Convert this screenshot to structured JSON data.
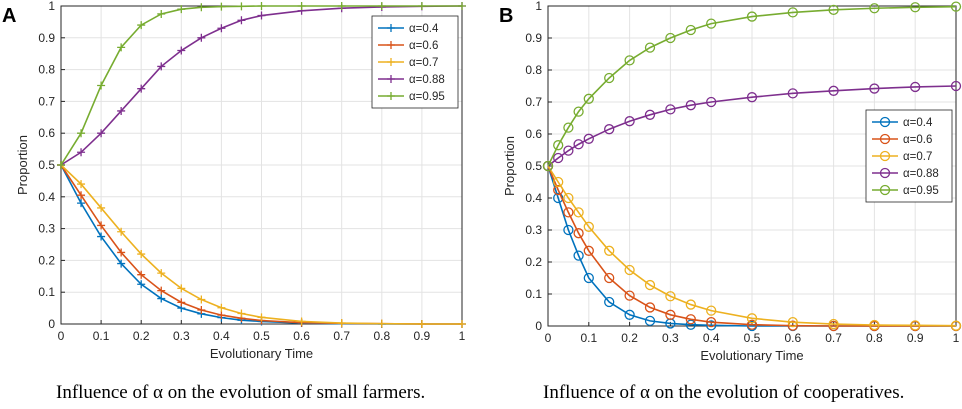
{
  "chart_data": [
    {
      "panel_label": "A",
      "type": "line",
      "xlabel": "Evolutionary Time",
      "ylabel": "Proportion",
      "xlim": [
        0,
        1
      ],
      "ylim": [
        0,
        1
      ],
      "xticks": [
        "0",
        "0.1",
        "0.2",
        "0.3",
        "0.4",
        "0.5",
        "0.6",
        "0.7",
        "0.8",
        "0.9",
        "1"
      ],
      "yticks": [
        "0",
        "0.1",
        "0.2",
        "0.3",
        "0.4",
        "0.5",
        "0.6",
        "0.7",
        "0.8",
        "0.9",
        "1"
      ],
      "grid": true,
      "legend_position": "top-right",
      "marker": "plus",
      "x": [
        0,
        0.05,
        0.1,
        0.15,
        0.2,
        0.25,
        0.3,
        0.35,
        0.4,
        0.45,
        0.5,
        0.6,
        0.7,
        0.8,
        0.9,
        1.0
      ],
      "series": [
        {
          "name": "α=0.4",
          "color": "#0072BD",
          "values": [
            0.5,
            0.38,
            0.275,
            0.19,
            0.125,
            0.08,
            0.05,
            0.032,
            0.02,
            0.012,
            0.008,
            0.003,
            0.001,
            0.0,
            0.0,
            0.0
          ]
        },
        {
          "name": "α=0.6",
          "color": "#D95319",
          "values": [
            0.5,
            0.405,
            0.31,
            0.225,
            0.155,
            0.105,
            0.068,
            0.044,
            0.028,
            0.018,
            0.011,
            0.004,
            0.002,
            0.001,
            0.0,
            0.0
          ]
        },
        {
          "name": "α=0.7",
          "color": "#EDB120",
          "values": [
            0.5,
            0.44,
            0.365,
            0.29,
            0.22,
            0.16,
            0.112,
            0.077,
            0.051,
            0.033,
            0.021,
            0.008,
            0.003,
            0.001,
            0.0,
            0.0
          ]
        },
        {
          "name": "α=0.88",
          "color": "#7E2F8E",
          "values": [
            0.5,
            0.54,
            0.6,
            0.67,
            0.74,
            0.81,
            0.86,
            0.9,
            0.93,
            0.955,
            0.97,
            0.985,
            0.993,
            0.997,
            0.999,
            1.0
          ]
        },
        {
          "name": "α=0.95",
          "color": "#77AC30",
          "values": [
            0.5,
            0.6,
            0.75,
            0.87,
            0.94,
            0.975,
            0.99,
            0.996,
            0.998,
            0.999,
            1.0,
            1.0,
            1.0,
            1.0,
            1.0,
            1.0
          ]
        }
      ]
    },
    {
      "panel_label": "B",
      "type": "line",
      "xlabel": "Evolutionary Time",
      "ylabel": "Proportion",
      "xlim": [
        0,
        1
      ],
      "ylim": [
        0,
        1
      ],
      "xticks": [
        "0",
        "0.1",
        "0.2",
        "0.3",
        "0.4",
        "0.5",
        "0.6",
        "0.7",
        "0.8",
        "0.9",
        "1"
      ],
      "yticks": [
        "0",
        "0.1",
        "0.2",
        "0.3",
        "0.4",
        "0.5",
        "0.6",
        "0.7",
        "0.8",
        "0.9",
        "1"
      ],
      "grid": true,
      "legend_position": "right",
      "marker": "circle",
      "x": [
        0,
        0.025,
        0.05,
        0.075,
        0.1,
        0.15,
        0.2,
        0.25,
        0.3,
        0.35,
        0.4,
        0.5,
        0.6,
        0.7,
        0.8,
        0.9,
        1.0
      ],
      "series": [
        {
          "name": "α=0.4",
          "color": "#0072BD",
          "values": [
            0.5,
            0.4,
            0.3,
            0.22,
            0.15,
            0.075,
            0.035,
            0.016,
            0.008,
            0.004,
            0.002,
            0.0,
            0.0,
            0.0,
            0.0,
            0.0,
            0.0
          ]
        },
        {
          "name": "α=0.6",
          "color": "#D95319",
          "values": [
            0.5,
            0.425,
            0.355,
            0.29,
            0.235,
            0.15,
            0.095,
            0.058,
            0.035,
            0.021,
            0.012,
            0.004,
            0.001,
            0.0,
            0.0,
            0.0,
            0.0
          ]
        },
        {
          "name": "α=0.7",
          "color": "#EDB120",
          "values": [
            0.5,
            0.45,
            0.4,
            0.355,
            0.31,
            0.235,
            0.175,
            0.128,
            0.093,
            0.067,
            0.048,
            0.024,
            0.012,
            0.006,
            0.003,
            0.002,
            0.001
          ]
        },
        {
          "name": "α=0.88",
          "color": "#7E2F8E",
          "values": [
            0.5,
            0.525,
            0.548,
            0.568,
            0.585,
            0.615,
            0.64,
            0.66,
            0.677,
            0.69,
            0.7,
            0.715,
            0.727,
            0.735,
            0.742,
            0.747,
            0.75
          ]
        },
        {
          "name": "α=0.95",
          "color": "#77AC30",
          "values": [
            0.5,
            0.565,
            0.62,
            0.67,
            0.71,
            0.775,
            0.83,
            0.87,
            0.9,
            0.925,
            0.945,
            0.967,
            0.98,
            0.988,
            0.993,
            0.996,
            0.998
          ]
        }
      ]
    }
  ],
  "captions": {
    "a": "Influence of α on the evolution of small farmers.",
    "b": "Influence of α on the evolution of cooperatives."
  }
}
